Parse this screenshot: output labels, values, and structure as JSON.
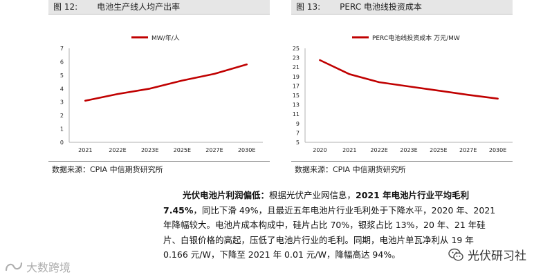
{
  "figures": [
    {
      "number": "图 12:",
      "title": "电池生产线人均产出率",
      "source": "数据来源：CPIA 中信期货研究所",
      "legend": "MW/年/人"
    },
    {
      "number": "图 13:",
      "title": "PERC 电池线投资成本",
      "source": "数据来源：CPIA 中信期货研究所",
      "legend": "PERC电池线投资成本  万元/MW"
    }
  ],
  "chart_data": [
    {
      "type": "line",
      "title": "电池生产线人均产出率",
      "categories": [
        "2021",
        "2022E",
        "2023E",
        "2025E",
        "2027E",
        "2030E"
      ],
      "series": [
        {
          "name": "MW/年/人",
          "values": [
            3.1,
            3.6,
            4.0,
            4.6,
            5.1,
            5.8
          ]
        }
      ],
      "ylim": [
        0,
        7
      ],
      "yticks": [
        0,
        1,
        2,
        3,
        4,
        5,
        6,
        7
      ],
      "color": "#c00000",
      "grid": false,
      "legend_position": "top-center"
    },
    {
      "type": "line",
      "title": "PERC 电池线投资成本",
      "categories": [
        "2020",
        "2021",
        "2022E",
        "2023E",
        "2025E",
        "2027E",
        "2030E"
      ],
      "series": [
        {
          "name": "PERC电池线投资成本  万元/MW",
          "values": [
            22.5,
            19.5,
            17.8,
            16.9,
            16.0,
            15.1,
            14.3
          ]
        }
      ],
      "ylim": [
        5,
        25
      ],
      "yticks": [
        5,
        7,
        9,
        11,
        13,
        15,
        17,
        19,
        21,
        23,
        25
      ],
      "color": "#c00000",
      "grid": false,
      "legend_position": "top-center"
    }
  ],
  "paragraph": {
    "lead": "光伏电池片利润偏低：",
    "text1": "根据光伏产业网信息，",
    "bold1": "2021 年电池片行业平均毛利",
    "bold2": "7.45%",
    "line2_rest": "，同比下滑 49%，且最近五年电池片行业毛利处于下降水平，2020 年、2021",
    "line3": "年降幅较大。电池片成本构成中，硅片占比 70%，银浆占比 13%，20 年、21 年硅",
    "line4": "片、白银价格的高起，压低了电池片行业的毛利。同期，电池片单瓦净利从 19 年",
    "line5": "0.166 元/W，下降至 2021 年 0.01 元/W，降幅高达 94%。"
  },
  "watermarks": {
    "left": "大数跨境",
    "right": "光伏研习社"
  }
}
